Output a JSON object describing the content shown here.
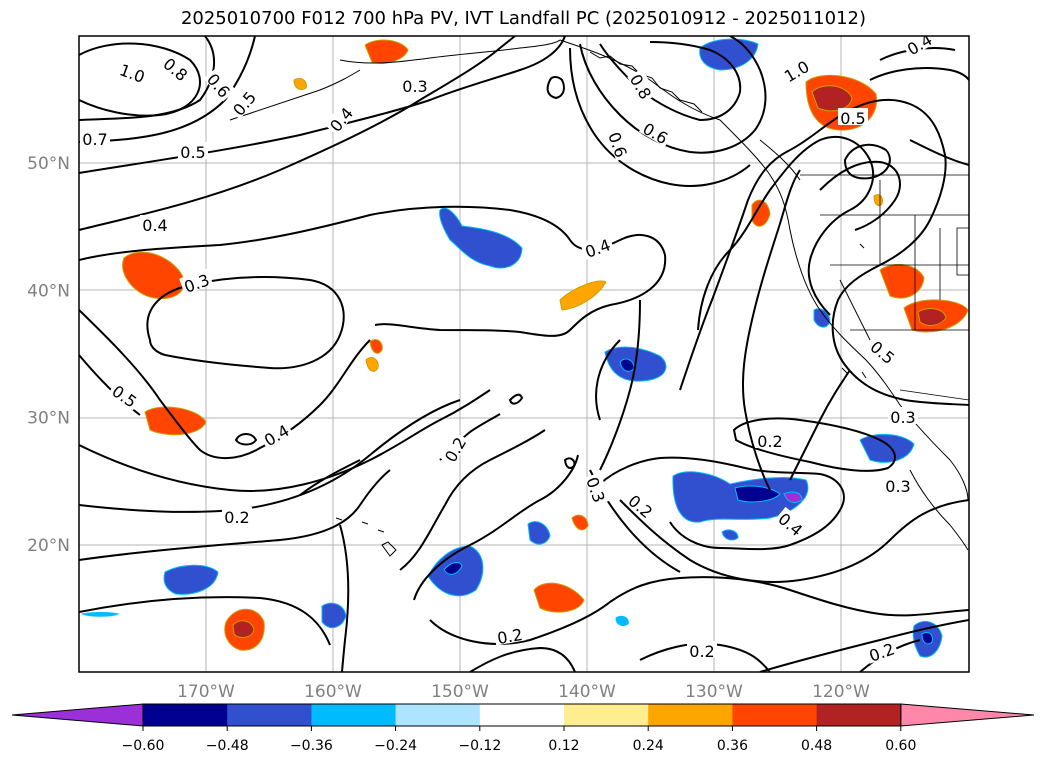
{
  "title": "2025010700 F012 700 hPa PV, IVT Landfall PC (2025010912 - 2025011012)",
  "map": {
    "lat_labels": [
      {
        "text": "50°N",
        "lat": 50
      },
      {
        "text": "40°N",
        "lat": 40
      },
      {
        "text": "30°N",
        "lat": 30
      },
      {
        "text": "20°N",
        "lat": 20
      }
    ],
    "lon_labels": [
      {
        "text": "170°W",
        "lon": -170
      },
      {
        "text": "160°W",
        "lon": -160
      },
      {
        "text": "150°W",
        "lon": -150
      },
      {
        "text": "140°W",
        "lon": -140
      },
      {
        "text": "130°W",
        "lon": -130
      },
      {
        "text": "120°W",
        "lon": -120
      }
    ],
    "contour_labels": [
      "1.0",
      "0.8",
      "0.6",
      "0.5",
      "0.7",
      "0.5",
      "0.4",
      "0.3",
      "0.4",
      "0.3",
      "0.5",
      "0.4",
      "0.2",
      "0.2",
      "0.4",
      "0.3",
      "0.2",
      "0.2",
      "0.2",
      "0.2",
      "0.2",
      "0.3",
      "0.4",
      "0.5",
      "0.3",
      "0.6",
      "0.6",
      "0.8",
      "1.0",
      "0.5",
      "0.4"
    ]
  },
  "colorbar": {
    "colors": [
      "#9b30d9",
      "#000090",
      "#3050d0",
      "#00bbff",
      "#aee4ff",
      "#ffffff",
      "#ffee90",
      "#ffa500",
      "#ff4500",
      "#b22222",
      "#ff88aa"
    ],
    "ticks": [
      "−0.60",
      "−0.48",
      "−0.36",
      "−0.24",
      "−0.12",
      "0.12",
      "0.24",
      "0.36",
      "0.48",
      "0.60"
    ]
  }
}
